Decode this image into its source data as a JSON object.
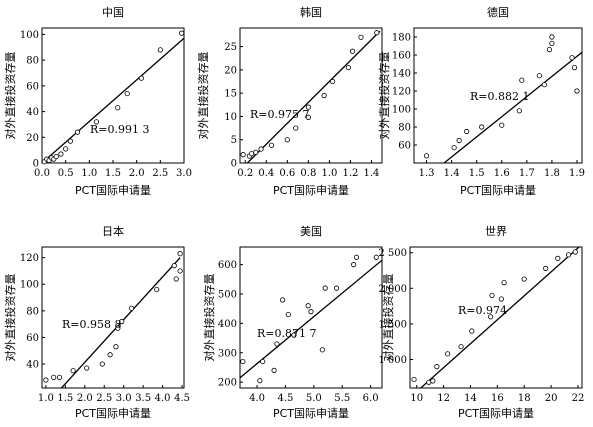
{
  "chart_data": [
    {
      "type": "scatter",
      "title": "中国",
      "xlabel": "PCT国际申请量",
      "ylabel": "对外直接投资存量",
      "xlim": [
        0,
        3.0
      ],
      "ylim": [
        0,
        105
      ],
      "xticks": [
        0.0,
        0.5,
        1.0,
        1.5,
        2.0,
        2.5,
        3.0
      ],
      "xtick_labels": [
        "0.0",
        "0.5",
        "1.0",
        "1.5",
        "2.0",
        "2.5",
        "3.0"
      ],
      "yticks": [
        0,
        20,
        40,
        60,
        80,
        100
      ],
      "ytick_labels": [
        "0",
        "20",
        "40",
        "60",
        "80",
        "100"
      ],
      "points": [
        [
          0.05,
          1
        ],
        [
          0.1,
          3
        ],
        [
          0.15,
          2
        ],
        [
          0.2,
          4
        ],
        [
          0.25,
          3
        ],
        [
          0.3,
          5
        ],
        [
          0.4,
          7
        ],
        [
          0.5,
          11
        ],
        [
          0.6,
          17
        ],
        [
          0.75,
          24
        ],
        [
          1.15,
          32
        ],
        [
          1.6,
          43
        ],
        [
          1.8,
          54
        ],
        [
          2.1,
          66
        ],
        [
          2.5,
          88
        ],
        [
          2.95,
          101
        ]
      ],
      "fit_line": [
        [
          0.0,
          0.0
        ],
        [
          3.0,
          97
        ]
      ],
      "annotation": "R=0.991 3"
    },
    {
      "type": "scatter",
      "title": "韩国",
      "xlabel": "PCT国际申请量",
      "ylabel": "对外直接投资存量",
      "xlim": [
        0.15,
        1.5
      ],
      "ylim": [
        0,
        29
      ],
      "xticks": [
        0.2,
        0.4,
        0.6,
        0.8,
        1.0,
        1.2,
        1.4
      ],
      "xtick_labels": [
        "0.2",
        "0.4",
        "0.6",
        "0.8",
        "1.0",
        "1.2",
        "1.4"
      ],
      "yticks": [
        0,
        5,
        10,
        15,
        20,
        25
      ],
      "ytick_labels": [
        "0",
        "5",
        "10",
        "15",
        "20",
        "25"
      ],
      "points": [
        [
          0.18,
          1.8
        ],
        [
          0.24,
          1.5
        ],
        [
          0.26,
          2.0
        ],
        [
          0.3,
          2.3
        ],
        [
          0.35,
          3.0
        ],
        [
          0.45,
          3.8
        ],
        [
          0.6,
          5.0
        ],
        [
          0.68,
          7.5
        ],
        [
          0.8,
          9.8
        ],
        [
          0.8,
          12.0
        ],
        [
          0.95,
          14.5
        ],
        [
          1.03,
          17.5
        ],
        [
          1.18,
          20.5
        ],
        [
          1.22,
          24.0
        ],
        [
          1.3,
          27.0
        ],
        [
          1.45,
          28.0
        ]
      ],
      "fit_line": [
        [
          0.22,
          0.0
        ],
        [
          1.48,
          28.3
        ]
      ],
      "annotation": "R=0.975 7"
    },
    {
      "type": "scatter",
      "title": "德国",
      "xlabel": "PCT国际申请量",
      "ylabel": "对外直接投资存量",
      "xlim": [
        1.25,
        1.92
      ],
      "ylim": [
        40,
        190
      ],
      "xticks": [
        1.3,
        1.4,
        1.5,
        1.6,
        1.7,
        1.8,
        1.9
      ],
      "xtick_labels": [
        "1.3",
        "1.4",
        "1.5",
        "1.6",
        "1.7",
        "1.8",
        "1.9"
      ],
      "yticks": [
        60,
        80,
        100,
        120,
        140,
        160,
        180
      ],
      "ytick_labels": [
        "60",
        "80",
        "100",
        "120",
        "140",
        "160",
        "180"
      ],
      "points": [
        [
          1.3,
          48
        ],
        [
          1.41,
          57
        ],
        [
          1.43,
          65
        ],
        [
          1.46,
          75
        ],
        [
          1.52,
          80
        ],
        [
          1.6,
          82
        ],
        [
          1.67,
          98
        ],
        [
          1.68,
          132
        ],
        [
          1.75,
          137
        ],
        [
          1.77,
          127
        ],
        [
          1.79,
          166
        ],
        [
          1.8,
          180
        ],
        [
          1.8,
          173
        ],
        [
          1.88,
          157
        ],
        [
          1.89,
          146
        ],
        [
          1.9,
          120
        ]
      ],
      "fit_line": [
        [
          1.37,
          40
        ],
        [
          1.92,
          163
        ]
      ],
      "annotation": "R=0.882 1"
    },
    {
      "type": "scatter",
      "title": "日本",
      "xlabel": "PCT国际申请量",
      "ylabel": "对外直接投资存量",
      "xlim": [
        0.9,
        4.55
      ],
      "ylim": [
        22,
        128
      ],
      "xticks": [
        1.0,
        1.5,
        2.0,
        2.5,
        3.0,
        3.5,
        4.0,
        4.5
      ],
      "xtick_labels": [
        "1.0",
        "1.5",
        "2.0",
        "2.5",
        "3.0",
        "3.5",
        "4.0",
        "4.5"
      ],
      "yticks": [
        40,
        60,
        80,
        100,
        120
      ],
      "ytick_labels": [
        "40",
        "60",
        "80",
        "100",
        "120"
      ],
      "points": [
        [
          1.0,
          28
        ],
        [
          1.2,
          30
        ],
        [
          1.35,
          30
        ],
        [
          1.7,
          35
        ],
        [
          2.05,
          37
        ],
        [
          2.45,
          40
        ],
        [
          2.65,
          47
        ],
        [
          2.8,
          53
        ],
        [
          2.85,
          67
        ],
        [
          2.95,
          72
        ],
        [
          3.2,
          82
        ],
        [
          3.85,
          96
        ],
        [
          4.35,
          104
        ],
        [
          4.3,
          114
        ],
        [
          4.45,
          110
        ],
        [
          4.45,
          123
        ]
      ],
      "fit_line": [
        [
          1.4,
          22
        ],
        [
          4.45,
          120
        ]
      ],
      "annotation": "R=0.958 8"
    },
    {
      "type": "scatter",
      "title": "美国",
      "xlabel": "PCT国际申请量",
      "ylabel": "对外直接投资存量",
      "xlim": [
        3.7,
        6.2
      ],
      "ylim": [
        180,
        660
      ],
      "xticks": [
        4.0,
        4.5,
        5.0,
        5.5,
        6.0
      ],
      "xtick_labels": [
        "4.0",
        "4.5",
        "5.0",
        "5.5",
        "6.0"
      ],
      "yticks": [
        200,
        300,
        400,
        500,
        600
      ],
      "ytick_labels": [
        "200",
        "300",
        "400",
        "500",
        "600"
      ],
      "points": [
        [
          3.75,
          270
        ],
        [
          4.05,
          205
        ],
        [
          4.1,
          270
        ],
        [
          4.3,
          240
        ],
        [
          4.35,
          330
        ],
        [
          4.45,
          480
        ],
        [
          4.55,
          430
        ],
        [
          4.65,
          360
        ],
        [
          4.9,
          460
        ],
        [
          4.95,
          440
        ],
        [
          5.15,
          310
        ],
        [
          5.2,
          520
        ],
        [
          5.4,
          520
        ],
        [
          5.7,
          600
        ],
        [
          5.75,
          625
        ],
        [
          6.1,
          625
        ]
      ],
      "fit_line": [
        [
          3.7,
          215
        ],
        [
          6.2,
          615
        ]
      ],
      "annotation": "R=0.871 7"
    },
    {
      "type": "scatter",
      "title": "世界",
      "xlabel": "PCT国际申请量",
      "ylabel": "对外直接投资存量",
      "xlim": [
        9.5,
        22.3
      ],
      "ylim": [
        600,
        2580
      ],
      "xticks": [
        10,
        12,
        14,
        16,
        18,
        20,
        22
      ],
      "xtick_labels": [
        "10",
        "12",
        "14",
        "16",
        "18",
        "20",
        "22"
      ],
      "yticks": [
        1000,
        1500,
        2000,
        2500
      ],
      "ytick_labels": [
        "1 000",
        "1 500",
        "2 000",
        "2 500"
      ],
      "points": [
        [
          9.8,
          720
        ],
        [
          10.9,
          680
        ],
        [
          11.2,
          700
        ],
        [
          11.5,
          900
        ],
        [
          12.3,
          1080
        ],
        [
          13.3,
          1180
        ],
        [
          14.1,
          1400
        ],
        [
          15.5,
          1600
        ],
        [
          15.6,
          1900
        ],
        [
          16.3,
          1850
        ],
        [
          16.5,
          2080
        ],
        [
          18,
          2130
        ],
        [
          19.6,
          2280
        ],
        [
          20.5,
          2420
        ],
        [
          21.3,
          2470
        ],
        [
          21.8,
          2510
        ]
      ],
      "fit_line": [
        [
          10.3,
          600
        ],
        [
          22.2,
          2600
        ]
      ],
      "annotation": "R=0.974"
    }
  ]
}
